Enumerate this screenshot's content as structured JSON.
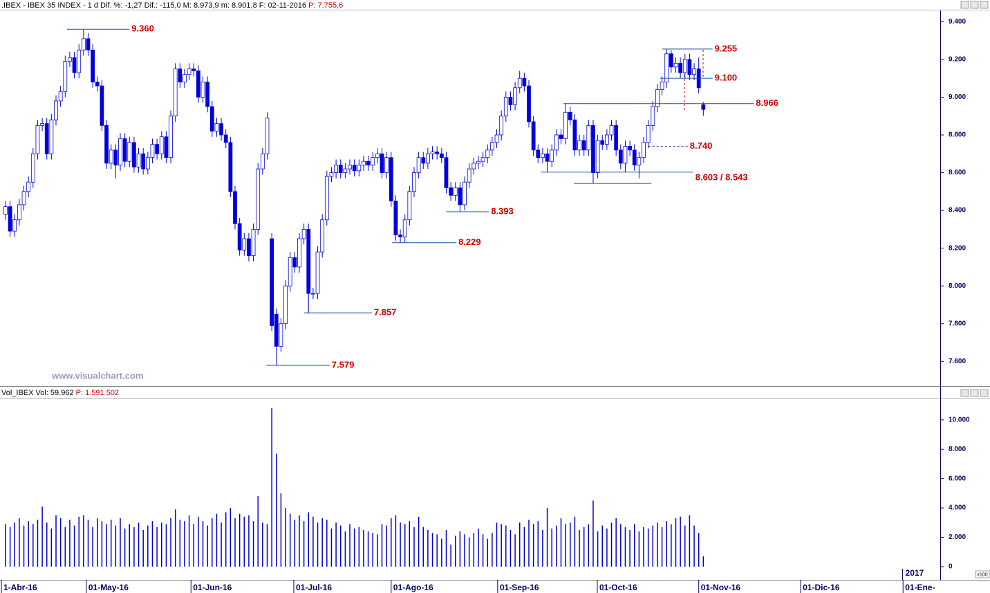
{
  "chart_data": [
    {
      "type": "candlestick",
      "info": ".IBEX - IBEX 35 INDEX - 1 d Dif. %: -1,27 Dif.: -115,0 M: 8.973,9 m: 8.901,8 F: 02-11-2016",
      "info_price": "P: 7.755,6",
      "watermark": "www.visualchart.com",
      "color": "#0000dd",
      "xlim": [
        -1.2,
        203.6
      ],
      "ylim": [
        7480,
        9460
      ],
      "yticks": [
        {
          "value": 9400,
          "label": "9.400"
        },
        {
          "value": 9200,
          "label": "9.200"
        },
        {
          "value": 9000,
          "label": "9.000"
        },
        {
          "value": 8800,
          "label": "8.800"
        },
        {
          "value": 8600,
          "label": "8.600"
        },
        {
          "value": 8400,
          "label": "8.400"
        },
        {
          "value": 8200,
          "label": "8.200"
        },
        {
          "value": 8000,
          "label": "8.000"
        },
        {
          "value": 7800,
          "label": "7.800"
        },
        {
          "value": 7600,
          "label": "7.600"
        }
      ],
      "grid": false,
      "open": [
        8380,
        8420,
        8290,
        8350,
        8430,
        8500,
        8550,
        8700,
        8850,
        8860,
        8700,
        8880,
        8980,
        9030,
        9190,
        9210,
        9130,
        9250,
        9310,
        9250,
        9080,
        9060,
        8850,
        8650,
        8720,
        8640,
        8780,
        8660,
        8760,
        8630,
        8700,
        8620,
        8680,
        8750,
        8700,
        8790,
        8680,
        8900,
        9150,
        9080,
        9120,
        9150,
        9140,
        9000,
        9080,
        8950,
        8820,
        8860,
        8800,
        8760,
        8500,
        8330,
        8190,
        8250,
        8160,
        8300,
        8620,
        8700,
        8250,
        7850,
        7680,
        7800,
        8000,
        8150,
        8100,
        8250,
        8300,
        7960,
        7960,
        8180,
        8350,
        8580,
        8600,
        8640,
        8600,
        8620,
        8640,
        8610,
        8640,
        8660,
        8640,
        8680,
        8700,
        8600,
        8680,
        8450,
        8270,
        8260,
        8350,
        8500,
        8600,
        8680,
        8650,
        8700,
        8710,
        8700,
        8680,
        8520,
        8480,
        8520,
        8430,
        8550,
        8620,
        8650,
        8660,
        8680,
        8720,
        8760,
        8800,
        8900,
        9000,
        8960,
        9050,
        9100,
        9060,
        8870,
        8720,
        8680,
        8700,
        8660,
        8720,
        8800,
        8780,
        8920,
        8880,
        8720,
        8770,
        8720,
        8850,
        8600,
        8770,
        8750,
        8800,
        8850,
        8720,
        8650,
        8740,
        8720,
        8640,
        8680,
        8760,
        8850,
        8950,
        9040,
        9080,
        9230,
        9160,
        9180,
        9130,
        9200,
        9120,
        9150,
        8960
      ],
      "high": [
        8450,
        8450,
        8380,
        8460,
        8530,
        8580,
        8730,
        8880,
        8890,
        8890,
        8910,
        9010,
        9060,
        9220,
        9240,
        9240,
        9280,
        9360,
        9340,
        9280,
        9110,
        9090,
        8880,
        8750,
        8750,
        8810,
        8810,
        8790,
        8790,
        8730,
        8730,
        8710,
        8780,
        8780,
        8820,
        8820,
        8930,
        9180,
        9180,
        9150,
        9180,
        9180,
        9170,
        9110,
        9110,
        8980,
        8890,
        8890,
        8830,
        8790,
        8530,
        8360,
        8280,
        8280,
        8330,
        8650,
        8730,
        8920,
        8280,
        7880,
        7830,
        8030,
        8180,
        8180,
        8280,
        8330,
        8330,
        7990,
        8210,
        8380,
        8610,
        8630,
        8670,
        8670,
        8650,
        8670,
        8670,
        8670,
        8690,
        8690,
        8710,
        8730,
        8730,
        8710,
        8710,
        8480,
        8300,
        8380,
        8530,
        8630,
        8710,
        8710,
        8730,
        8740,
        8740,
        8730,
        8710,
        8550,
        8550,
        8550,
        8580,
        8650,
        8680,
        8690,
        8710,
        8750,
        8790,
        8830,
        8930,
        9030,
        9030,
        9080,
        9140,
        9130,
        9090,
        8900,
        8750,
        8730,
        8730,
        8750,
        8830,
        8830,
        8966,
        8950,
        8910,
        8800,
        8800,
        8880,
        8880,
        8800,
        8800,
        8830,
        8880,
        8880,
        8750,
        8770,
        8770,
        8750,
        8710,
        8790,
        8880,
        8980,
        9070,
        9110,
        9255,
        9250,
        9210,
        9210,
        9230,
        9230,
        9180,
        9210,
        8973.9
      ],
      "low": [
        8350,
        8260,
        8260,
        8320,
        8400,
        8470,
        8520,
        8670,
        8820,
        8670,
        8670,
        8850,
        8950,
        9000,
        9160,
        9100,
        9100,
        9220,
        9220,
        9050,
        9030,
        8820,
        8620,
        8620,
        8570,
        8610,
        8630,
        8630,
        8600,
        8600,
        8590,
        8590,
        8650,
        8670,
        8670,
        8650,
        8650,
        8870,
        9050,
        9050,
        9090,
        9110,
        8970,
        8970,
        8920,
        8790,
        8790,
        8770,
        8730,
        8470,
        8300,
        8160,
        8160,
        8130,
        8130,
        8270,
        8590,
        8670,
        7760,
        7579,
        7650,
        7770,
        7970,
        8070,
        8070,
        8220,
        7857,
        7930,
        7930,
        8150,
        8320,
        8550,
        8570,
        8570,
        8570,
        8590,
        8580,
        8580,
        8610,
        8610,
        8610,
        8650,
        8570,
        8570,
        8420,
        8240,
        8229,
        8230,
        8320,
        8470,
        8570,
        8620,
        8620,
        8670,
        8670,
        8650,
        8490,
        8450,
        8450,
        8393,
        8400,
        8520,
        8590,
        8620,
        8630,
        8650,
        8690,
        8730,
        8770,
        8870,
        8930,
        8930,
        9020,
        9030,
        8840,
        8690,
        8650,
        8650,
        8603,
        8630,
        8690,
        8750,
        8750,
        8850,
        8690,
        8690,
        8690,
        8690,
        8543,
        8570,
        8720,
        8720,
        8770,
        8690,
        8620,
        8603,
        8690,
        8610,
        8570,
        8650,
        8730,
        8820,
        8920,
        9010,
        9050,
        9130,
        9130,
        9100,
        9100,
        9090,
        9090,
        9020,
        8901.8
      ],
      "close": [
        8420,
        8290,
        8350,
        8430,
        8500,
        8550,
        8700,
        8850,
        8860,
        8700,
        8880,
        8980,
        9030,
        9190,
        9210,
        9130,
        9250,
        9310,
        9250,
        9080,
        9060,
        8850,
        8650,
        8720,
        8640,
        8780,
        8660,
        8760,
        8630,
        8700,
        8620,
        8680,
        8750,
        8700,
        8790,
        8680,
        8900,
        9150,
        9080,
        9120,
        9150,
        9140,
        9000,
        9080,
        8950,
        8820,
        8860,
        8800,
        8760,
        8500,
        8330,
        8190,
        8250,
        8160,
        8300,
        8620,
        8700,
        8890,
        7790,
        7680,
        7800,
        8000,
        8150,
        8100,
        8250,
        8300,
        7960,
        7960,
        8180,
        8350,
        8580,
        8600,
        8640,
        8600,
        8620,
        8640,
        8610,
        8640,
        8660,
        8640,
        8680,
        8700,
        8600,
        8680,
        8450,
        8270,
        8260,
        8350,
        8500,
        8600,
        8680,
        8650,
        8700,
        8710,
        8700,
        8680,
        8520,
        8480,
        8520,
        8430,
        8550,
        8620,
        8650,
        8660,
        8680,
        8720,
        8760,
        8800,
        8900,
        9000,
        8960,
        9050,
        9100,
        9060,
        8870,
        8720,
        8680,
        8700,
        8660,
        8720,
        8800,
        8780,
        8920,
        8880,
        8720,
        8770,
        8720,
        8850,
        8600,
        8770,
        8750,
        8800,
        8850,
        8720,
        8650,
        8740,
        8720,
        8640,
        8680,
        8760,
        8850,
        8950,
        9040,
        9080,
        9230,
        9160,
        9180,
        9130,
        9200,
        9120,
        9150,
        9050,
        8935
      ],
      "annotations": [
        {
          "label": "9.360",
          "lines": [
            {
              "value": 9360,
              "start": 13.4,
              "end": 27
            }
          ]
        },
        {
          "label": "9.255",
          "lines": [
            {
              "value": 9255,
              "start": 143,
              "end": 154
            }
          ]
        },
        {
          "label": "9.100",
          "lines": [
            {
              "value": 9100,
              "start": 142.6,
              "end": 154
            }
          ]
        },
        {
          "label": "8.966",
          "lines": [
            {
              "value": 8966,
              "start": 121.5,
              "end": 163
            }
          ]
        },
        {
          "label": "8.740",
          "dashed": true,
          "lines": [
            {
              "value": 8740,
              "start": 140,
              "end": 148.6
            }
          ]
        },
        {
          "label": "8.603 / 8.543",
          "lines": [
            {
              "value": 8603,
              "start": 116.6,
              "end": 149.8
            },
            {
              "value": 8543,
              "start": 123.8,
              "end": 140.7
            }
          ]
        },
        {
          "label": "8.393",
          "lines": [
            {
              "value": 8393,
              "start": 96,
              "end": 105.3
            }
          ]
        },
        {
          "label": "8.229",
          "lines": [
            {
              "value": 8229,
              "start": 84.2,
              "end": 98.2
            }
          ]
        },
        {
          "label": "7.857",
          "lines": [
            {
              "value": 7857,
              "start": 65,
              "end": 79.8
            }
          ]
        },
        {
          "label": "7.579",
          "lines": [
            {
              "value": 7579,
              "start": 56.8,
              "end": 70.6
            }
          ]
        }
      ]
    },
    {
      "type": "bar",
      "info": "Vol_IBEX Vol: 59.962",
      "info_price": "P: 1.591.502",
      "volume_unit": "x100",
      "color": "#0000cc",
      "xlim": [
        -1.2,
        203.6
      ],
      "ylim": [
        -900,
        11500
      ],
      "yticks": [
        {
          "value": 10000,
          "label": "10.000"
        },
        {
          "value": 8000,
          "label": "8.000"
        },
        {
          "value": 6000,
          "label": "6.000"
        },
        {
          "value": 4000,
          "label": "4.000"
        },
        {
          "value": 2000,
          "label": "2.000"
        },
        0
      ],
      "grid": false,
      "xticks": [
        {
          "value": -0.9,
          "label": "1-Abr-16"
        },
        {
          "value": 17.6,
          "label": "01-May-16"
        },
        {
          "value": 40.4,
          "label": "01-Jun-16"
        },
        {
          "value": 62.8,
          "label": "01-Jul-16"
        },
        {
          "value": 84,
          "label": "01-Ago-16"
        },
        {
          "value": 107.2,
          "label": "01-Sep-16"
        },
        {
          "value": 128.9,
          "label": "01-Oct-16"
        },
        {
          "value": 151,
          "label": "01-Nov-16"
        },
        {
          "value": 173.2,
          "label": "01-Dic-16"
        },
        {
          "value": 195.5,
          "label": "01-Ene-"
        }
      ],
      "year_markers": [
        {
          "value": 195.4,
          "label": "2017"
        }
      ],
      "values": [
        2900,
        2700,
        3000,
        3300,
        2800,
        3100,
        2900,
        3200,
        4100,
        3000,
        2600,
        3500,
        3300,
        2700,
        3200,
        2800,
        3400,
        3500,
        3200,
        2700,
        3300,
        3100,
        2900,
        3200,
        2800,
        3300,
        2600,
        2900,
        2700,
        3000,
        2500,
        2800,
        3100,
        2700,
        3000,
        2900,
        3300,
        3900,
        3200,
        3100,
        3500,
        2900,
        3400,
        3100,
        2800,
        3300,
        3600,
        3000,
        3700,
        4000,
        3300,
        3600,
        3400,
        3500,
        3100,
        4800,
        3000,
        2900,
        10800,
        7700,
        5000,
        4000,
        3600,
        3200,
        3500,
        3100,
        3700,
        3400,
        3000,
        3300,
        3200,
        2600,
        3000,
        2800,
        2400,
        2900,
        2600,
        2700,
        2500,
        2400,
        2300,
        2200,
        2900,
        2800,
        3300,
        3500,
        3000,
        2900,
        3100,
        2700,
        3400,
        2700,
        2500,
        2300,
        2200,
        1900,
        2500,
        1500,
        2100,
        2400,
        2200,
        2000,
        2300,
        2600,
        2200,
        1900,
        2300,
        3000,
        2900,
        2800,
        2500,
        2200,
        3000,
        2700,
        3200,
        2900,
        3100,
        2500,
        4000,
        2600,
        2800,
        3300,
        2900,
        3000,
        3400,
        2500,
        2700,
        2900,
        4500,
        2400,
        2800,
        2600,
        3000,
        3300,
        2900,
        2700,
        2500,
        2900,
        2400,
        2700,
        2600,
        2800,
        3000,
        2700,
        3100,
        2900,
        3300,
        3400,
        2800,
        3500,
        2800,
        2300,
        700
      ]
    }
  ]
}
